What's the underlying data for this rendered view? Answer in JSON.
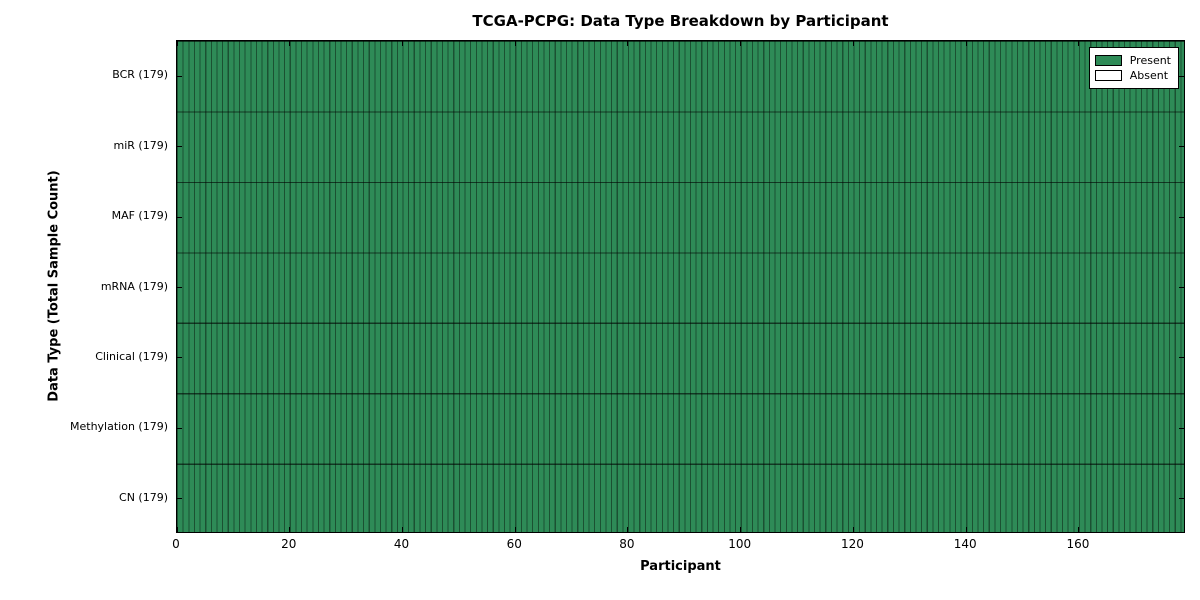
{
  "figure": {
    "background": "#ffffff"
  },
  "chart_data": {
    "type": "heatmap",
    "title": "TCGA-PCPG: Data Type Breakdown by Participant",
    "xlabel": "Participant",
    "ylabel": "Data Type (Total Sample Count)",
    "x_ticks": [
      0,
      20,
      40,
      60,
      80,
      100,
      120,
      140,
      160
    ],
    "xlim": [
      0,
      179
    ],
    "n_participants": 179,
    "rows_top_to_bottom": [
      "BCR (179)",
      "miR (179)",
      "MAF (179)",
      "mRNA (179)",
      "Clinical (179)",
      "Methylation (179)",
      "CN (179)"
    ],
    "series": [
      {
        "name": "BCR",
        "total_samples": 179,
        "present_count": 179,
        "absent_count": 0
      },
      {
        "name": "miR",
        "total_samples": 179,
        "present_count": 179,
        "absent_count": 0
      },
      {
        "name": "MAF",
        "total_samples": 179,
        "present_count": 179,
        "absent_count": 0
      },
      {
        "name": "mRNA",
        "total_samples": 179,
        "present_count": 179,
        "absent_count": 0
      },
      {
        "name": "Clinical",
        "total_samples": 179,
        "present_count": 179,
        "absent_count": 0
      },
      {
        "name": "Methylation",
        "total_samples": 179,
        "present_count": 179,
        "absent_count": 0
      },
      {
        "name": "CN",
        "total_samples": 179,
        "present_count": 179,
        "absent_count": 0
      }
    ],
    "cell_state_note": "every participant x data-type cell is Present",
    "grid": "per-participant vertical separators and per-row horizontal separators",
    "legend": {
      "position": "upper right",
      "entries": [
        {
          "label": "Present",
          "color": "#2e8b57"
        },
        {
          "label": "Absent",
          "color": "#ffffff"
        }
      ]
    },
    "colors": {
      "present_fill": "#2e8b57",
      "absent_fill": "#ffffff",
      "cell_edge": "#1d5b3a",
      "axis_frame": "#000000",
      "text": "#000000"
    }
  }
}
